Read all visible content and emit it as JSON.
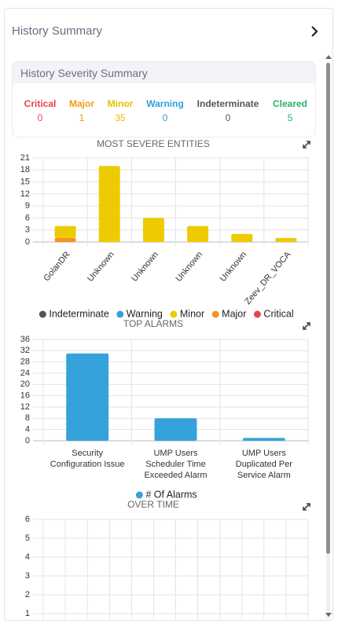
{
  "header": {
    "title": "History Summary"
  },
  "severity_summary": {
    "title": "History Severity Summary",
    "items": [
      {
        "label": "Critical",
        "value": 0,
        "color": "#e8414f"
      },
      {
        "label": "Major",
        "value": 1,
        "color": "#f39c12"
      },
      {
        "label": "Minor",
        "value": 35,
        "color": "#e4c100"
      },
      {
        "label": "Warning",
        "value": 0,
        "color": "#2f9fde"
      },
      {
        "label": "Indeterminate",
        "value": 0,
        "color": "#555555"
      },
      {
        "label": "Cleared",
        "value": 5,
        "color": "#27b36b"
      }
    ]
  },
  "chart_data": [
    {
      "type": "bar",
      "stacked": true,
      "title": "MOST SEVERE ENTITIES",
      "categories": [
        "GolanDR",
        "Unknown",
        "Unknown",
        "Unknown",
        "Unknown",
        "Zeev_DR_VOCA"
      ],
      "series": [
        {
          "name": "Indeterminate",
          "color": "#555555",
          "values": [
            0,
            0,
            0,
            0,
            0,
            0
          ]
        },
        {
          "name": "Warning",
          "color": "#36a2dc",
          "values": [
            0,
            0,
            0,
            0,
            0,
            0
          ]
        },
        {
          "name": "Minor",
          "color": "#eecb00",
          "values": [
            3,
            19,
            6,
            4,
            2,
            1
          ]
        },
        {
          "name": "Major",
          "color": "#f7931e",
          "values": [
            1,
            0,
            0,
            0,
            0,
            0
          ]
        },
        {
          "name": "Critical",
          "color": "#e8414f",
          "values": [
            0,
            0,
            0,
            0,
            0,
            0
          ]
        }
      ],
      "ylim": [
        0,
        21
      ],
      "yticks": [
        0,
        3,
        6,
        9,
        12,
        15,
        18,
        21
      ],
      "grid": true,
      "legend": "bottom"
    },
    {
      "type": "bar",
      "title": "TOP ALARMS",
      "categories": [
        "Security Configuration Issue",
        "UMP Users Scheduler Time Exceeded Alarm",
        "UMP Users Duplicated Per Service Alarm"
      ],
      "series": [
        {
          "name": "# Of Alarms",
          "color": "#36a2dc",
          "values": [
            31,
            8,
            1
          ]
        }
      ],
      "ylim": [
        0,
        36
      ],
      "yticks": [
        0,
        4,
        8,
        12,
        16,
        20,
        24,
        28,
        32,
        36
      ],
      "grid": true,
      "legend": "bottom"
    },
    {
      "type": "line",
      "title": "OVER TIME",
      "ylim": [
        0,
        6
      ],
      "yticks": [
        1,
        2,
        3,
        4,
        5,
        6
      ],
      "grid": true
    }
  ]
}
